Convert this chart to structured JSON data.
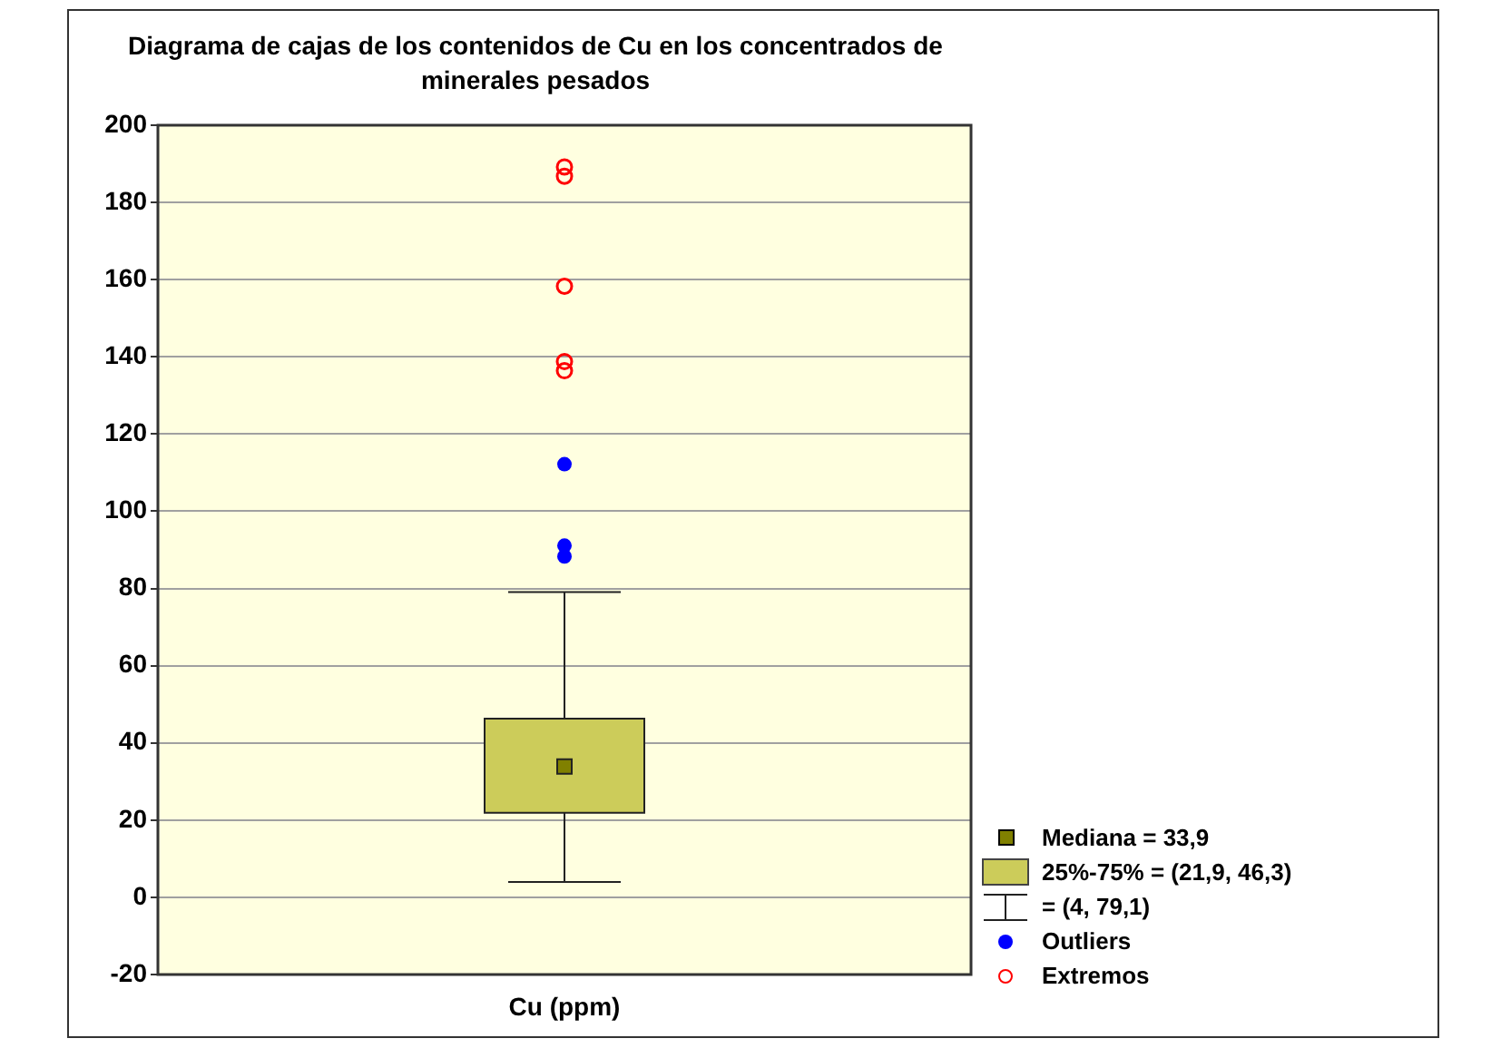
{
  "chart_data": {
    "type": "box",
    "title": "Diagrama de cajas de los contenidos de Cu en los concentrados de minerales pesados",
    "categories": [
      "Cu (ppm)"
    ],
    "ylim": [
      -20,
      200
    ],
    "yticks": [
      -20,
      0,
      20,
      40,
      60,
      80,
      100,
      120,
      140,
      160,
      180,
      200
    ],
    "grid": "y",
    "legend": "bottom right",
    "marker": "circle",
    "series": [
      {
        "color": "#cccc5a",
        "boxes": [
          {
            "low": 4,
            "q1": 21.9,
            "median": 33.9,
            "q3": 46.3,
            "high": 79.1
          }
        ]
      },
      {
        "type": "scatter",
        "name": "Outliers",
        "color": "#0000ff",
        "x": [
          "Cu (ppm)",
          "Cu (ppm)",
          "Cu (ppm)"
        ],
        "values": [
          88.3,
          91.1,
          112.2
        ]
      },
      {
        "type": "scatter",
        "name": "Extremos",
        "color": "#ff0000",
        "x": [
          "Cu (ppm)",
          "Cu (ppm)",
          "Cu (ppm)",
          "Cu (ppm)",
          "Cu (ppm)"
        ],
        "values": [
          136.4,
          138.8,
          158.3,
          186.8,
          189.2
        ]
      }
    ],
    "annotations": [
      "Mediana = 33,9",
      "25%-75% = (21,9, 46,3)",
      "= (4, 79,1)"
    ]
  }
}
